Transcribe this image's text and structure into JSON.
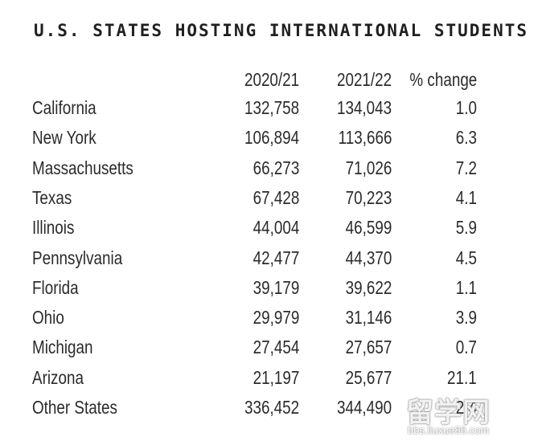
{
  "chart_data": {
    "type": "table",
    "title": "U.S. STATES HOSTING INTERNATIONAL STUDENTS",
    "columns": [
      "2020/21",
      "2021/22",
      "% change"
    ],
    "rows": [
      {
        "state": "California",
        "y2020_21": "132,758",
        "y2021_22": "134,043",
        "pct_change": "1.0"
      },
      {
        "state": "New York",
        "y2020_21": "106,894",
        "y2021_22": "113,666",
        "pct_change": "6.3"
      },
      {
        "state": "Massachusetts",
        "y2020_21": "66,273",
        "y2021_22": "71,026",
        "pct_change": "7.2"
      },
      {
        "state": "Texas",
        "y2020_21": "67,428",
        "y2021_22": "70,223",
        "pct_change": "4.1"
      },
      {
        "state": "Illinois",
        "y2020_21": "44,004",
        "y2021_22": "46,599",
        "pct_change": "5.9"
      },
      {
        "state": "Pennsylvania",
        "y2020_21": "42,477",
        "y2021_22": "44,370",
        "pct_change": "4.5"
      },
      {
        "state": "Florida",
        "y2020_21": "39,179",
        "y2021_22": "39,622",
        "pct_change": "1.1"
      },
      {
        "state": "Ohio",
        "y2020_21": "29,979",
        "y2021_22": "31,146",
        "pct_change": "3.9"
      },
      {
        "state": "Michigan",
        "y2020_21": "27,454",
        "y2021_22": "27,657",
        "pct_change": "0.7"
      },
      {
        "state": "Arizona",
        "y2020_21": "21,197",
        "y2021_22": "25,677",
        "pct_change": "21.1"
      },
      {
        "state": "Other States",
        "y2020_21": "336,452",
        "y2021_22": "344,490",
        "pct_change": "2.4"
      }
    ]
  },
  "watermark": {
    "logo_text": "留学网",
    "url_text": "bbs.liuxue86.com"
  }
}
